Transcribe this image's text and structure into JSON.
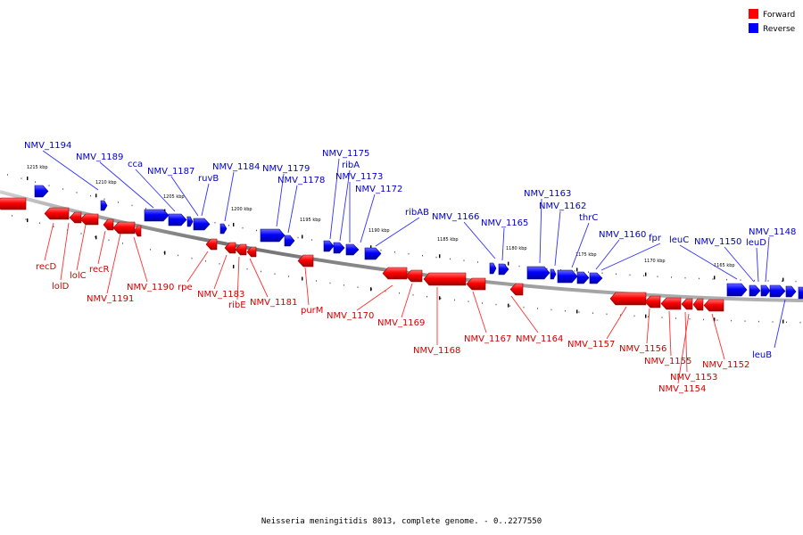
{
  "caption": "Neisseria meningitidis 8013, complete genome. - 0..2277550",
  "legend": [
    {
      "label": "Forward",
      "color": "#ff0000"
    },
    {
      "label": "Reverse",
      "color": "#0000ff"
    }
  ],
  "scale": {
    "unit": "kbp",
    "ticks": [
      "1215 kbp",
      "1210 kbp",
      "1205 kbp",
      "1200 kbp",
      "1195 kbp",
      "1190 kbp",
      "1185 kbp",
      "1180 kbp",
      "1175 kbp",
      "1170 kbp",
      "1165 kbp"
    ]
  },
  "genes": {
    "forward": [
      "recD",
      "lolD",
      "lolC",
      "recR",
      "NMV_1191",
      "NMV_1190",
      "rpe",
      "NMV_1183",
      "ribE",
      "NMV_1181",
      "purM",
      "NMV_1170",
      "NMV_1169",
      "NMV_1168",
      "NMV_1167",
      "NMV_1164",
      "NMV_1157",
      "NMV_1156",
      "NMV_1155",
      "NMV_1153",
      "NMV_1154",
      "NMV_1152"
    ],
    "reverse": [
      "NMV_1194",
      "NMV_1189",
      "cca",
      "NMV_1187",
      "ruvB",
      "NMV_1184",
      "NMV_1179",
      "NMV_1178",
      "NMV_1175",
      "ribA",
      "NMV_1173",
      "NMV_1172",
      "ribAB",
      "NMV_1166",
      "NMV_1165",
      "NMV_1163",
      "NMV_1162",
      "thrC",
      "NMV_1160",
      "fpr",
      "leuC",
      "NMV_1150",
      "leuD",
      "NMV_1148",
      "leuB"
    ]
  },
  "colors": {
    "forward": "#ff0000",
    "reverse": "#0000ff",
    "forward_label": "#d40000",
    "reverse_label": "#0000cc",
    "backbone": "#888888"
  }
}
